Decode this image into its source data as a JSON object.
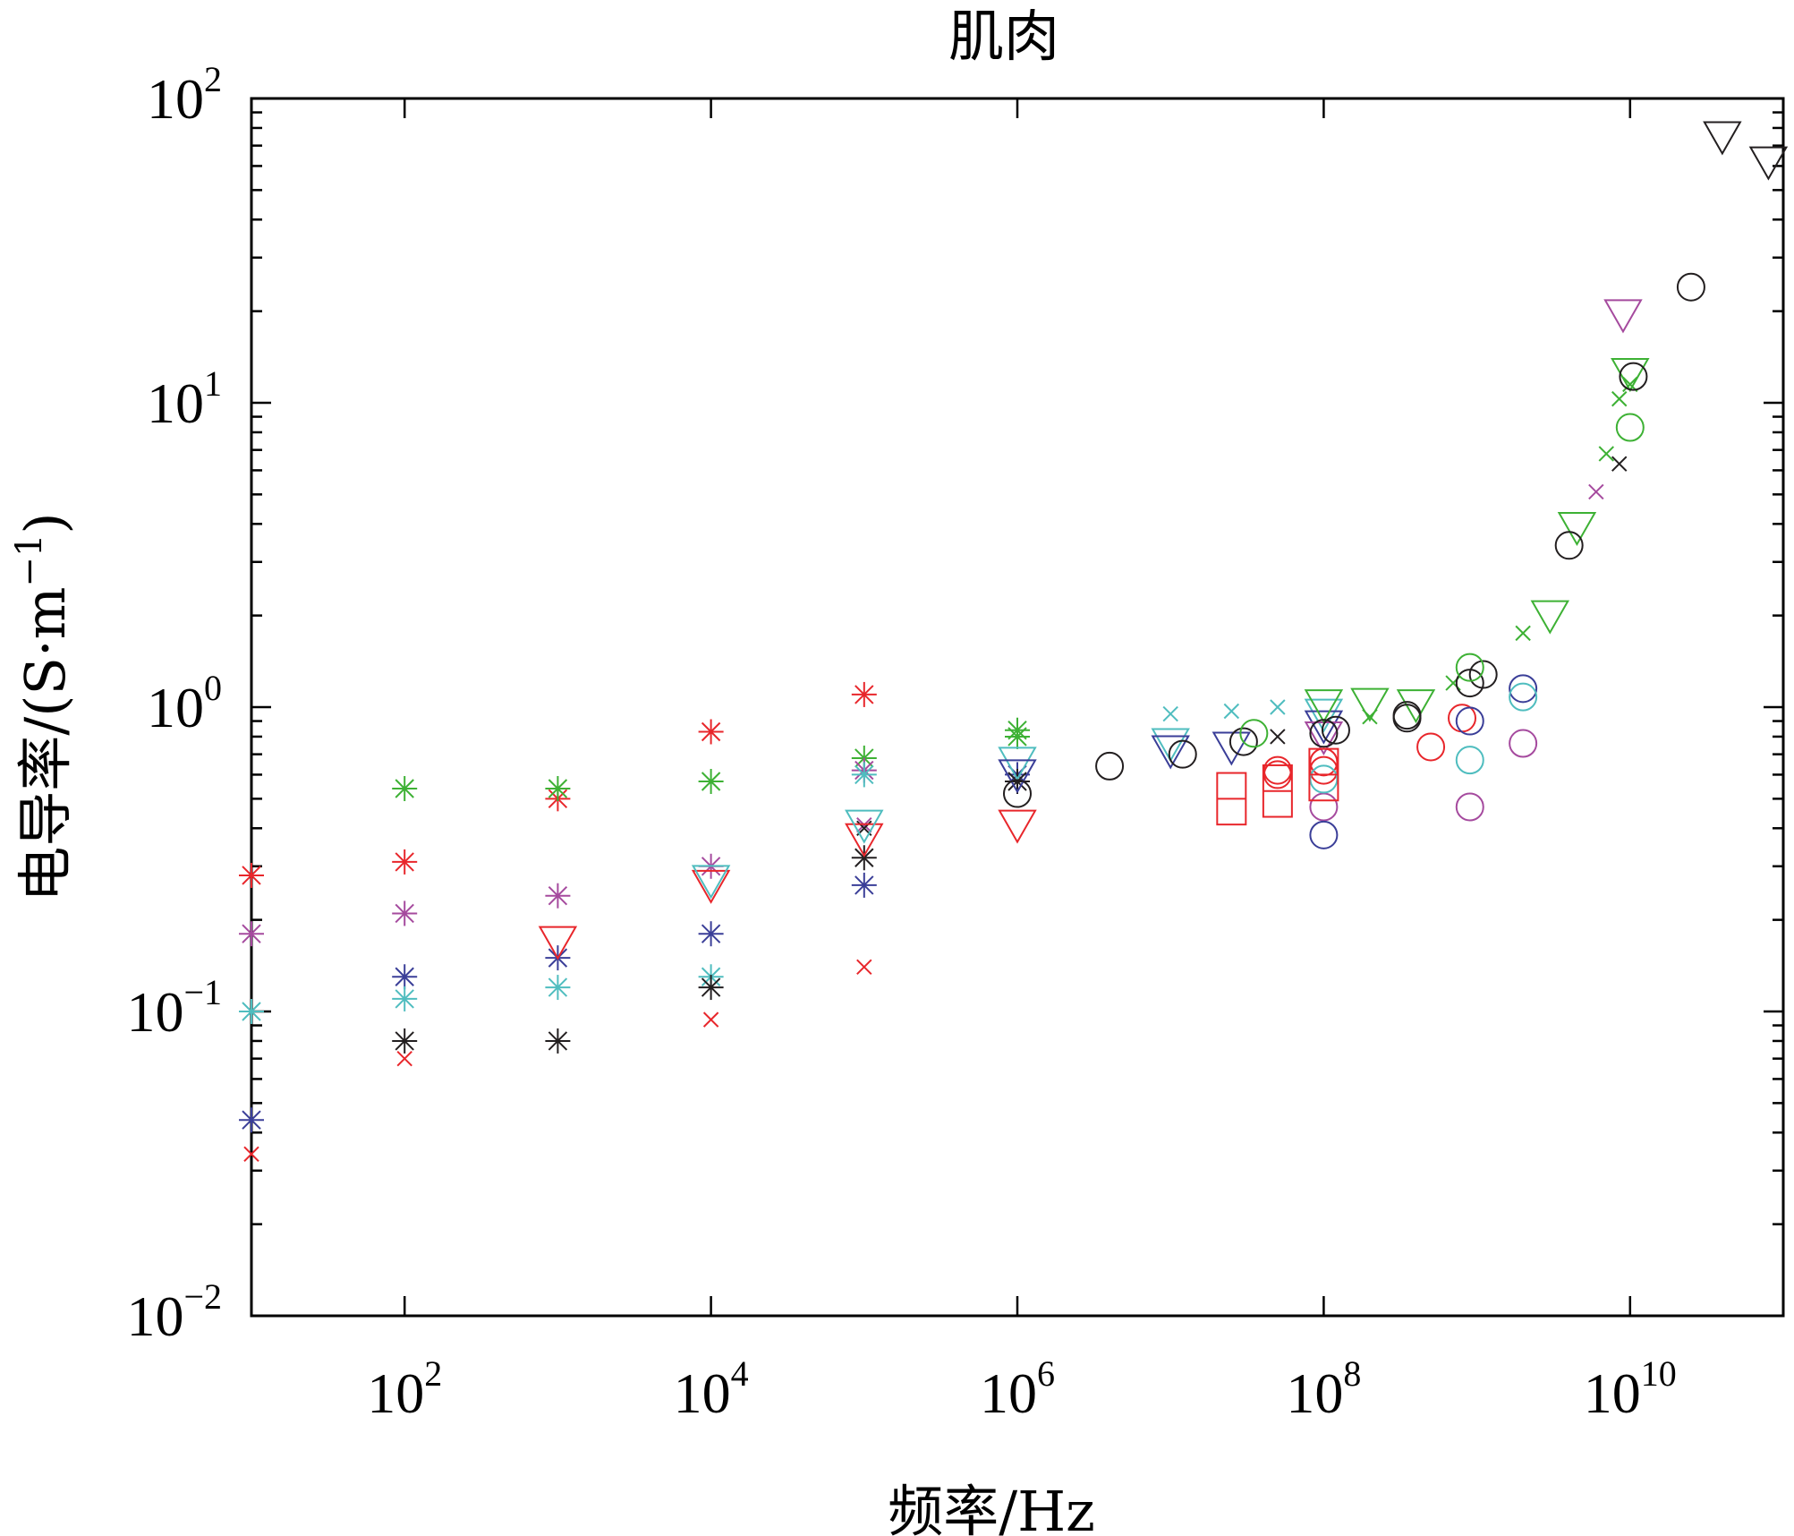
{
  "chart_data": {
    "type": "scatter",
    "title": "肌肉",
    "xlabel": "频率/Hz",
    "ylabel_prefix": "电导率/(S·m",
    "ylabel_sup": "−1",
    "ylabel_suffix": ")",
    "x_scale": "log",
    "y_scale": "log",
    "xlim": [
      10,
      100000000000
    ],
    "ylim": [
      0.01,
      100
    ],
    "grid": false,
    "legend": "none",
    "x_ticks": [
      {
        "value": 100,
        "base": "10",
        "exp": "2"
      },
      {
        "value": 10000,
        "base": "10",
        "exp": "4"
      },
      {
        "value": 1000000,
        "base": "10",
        "exp": "6"
      },
      {
        "value": 100000000,
        "base": "10",
        "exp": "8"
      },
      {
        "value": 10000000000,
        "base": "10",
        "exp": "10"
      }
    ],
    "y_ticks": [
      {
        "value": 0.01,
        "base": "10",
        "exp": "−2"
      },
      {
        "value": 0.1,
        "base": "10",
        "exp": "−1"
      },
      {
        "value": 1,
        "base": "10",
        "exp": "0"
      },
      {
        "value": 10,
        "base": "10",
        "exp": "1"
      },
      {
        "value": 100,
        "base": "10",
        "exp": "2"
      }
    ],
    "series": [
      {
        "marker": "asterisk",
        "color": "#e8262b",
        "points": [
          [
            10,
            0.28
          ],
          [
            100,
            0.31
          ],
          [
            1000,
            0.5
          ],
          [
            10000,
            0.83
          ],
          [
            100000,
            1.1
          ]
        ]
      },
      {
        "marker": "asterisk",
        "color": "#3db134",
        "points": [
          [
            100,
            0.54
          ],
          [
            1000,
            0.54
          ],
          [
            10000,
            0.57
          ],
          [
            100000,
            0.68
          ],
          [
            1000000,
            0.84
          ],
          [
            1000000,
            0.8
          ]
        ]
      },
      {
        "marker": "asterisk",
        "color": "#a54a9e",
        "points": [
          [
            10,
            0.18
          ],
          [
            100,
            0.21
          ],
          [
            1000,
            0.24
          ],
          [
            10000,
            0.3
          ],
          [
            100000,
            0.62
          ]
        ]
      },
      {
        "marker": "asterisk",
        "color": "#3a3e98",
        "points": [
          [
            10,
            0.044
          ],
          [
            100,
            0.13
          ],
          [
            1000,
            0.15
          ],
          [
            10000,
            0.18
          ],
          [
            100000,
            0.26
          ],
          [
            1000000,
            0.6
          ]
        ]
      },
      {
        "marker": "asterisk",
        "color": "#4fbdbf",
        "points": [
          [
            10,
            0.1
          ],
          [
            100,
            0.11
          ],
          [
            1000,
            0.12
          ],
          [
            10000,
            0.13
          ],
          [
            100000,
            0.6
          ]
        ]
      },
      {
        "marker": "asterisk",
        "color": "#231f20",
        "points": [
          [
            100,
            0.08
          ],
          [
            1000,
            0.08
          ],
          [
            10000,
            0.12
          ],
          [
            100000,
            0.32
          ],
          [
            1000000,
            0.57
          ]
        ]
      },
      {
        "marker": "cross",
        "color": "#e8262b",
        "points": [
          [
            10,
            0.034
          ],
          [
            100,
            0.07
          ],
          [
            10000,
            0.094
          ],
          [
            100000,
            0.14
          ]
        ]
      },
      {
        "marker": "cross",
        "color": "#4fbdbf",
        "points": [
          [
            10000000,
            0.95
          ],
          [
            25000000,
            0.97
          ],
          [
            50000000,
            1.0
          ]
        ]
      },
      {
        "marker": "cross",
        "color": "#a54a9e",
        "points": [
          [
            100000,
            0.41
          ],
          [
            6000000000,
            5.1
          ]
        ]
      },
      {
        "marker": "cross",
        "color": "#231f20",
        "points": [
          [
            100000,
            0.4
          ],
          [
            50000000,
            0.8
          ],
          [
            8500000000,
            6.3
          ]
        ]
      },
      {
        "marker": "cross",
        "color": "#3db134",
        "points": [
          [
            200000000,
            0.93
          ],
          [
            700000000,
            1.2
          ],
          [
            2000000000,
            1.75
          ],
          [
            7000000000,
            6.8
          ],
          [
            8500000000,
            10.3
          ],
          [
            10000000000,
            11.5
          ]
        ]
      },
      {
        "marker": "triangle",
        "color": "#e8262b",
        "points": [
          [
            1000,
            0.17
          ],
          [
            10000,
            0.26
          ],
          [
            100000,
            0.37
          ],
          [
            1000000,
            0.41
          ]
        ]
      },
      {
        "marker": "triangle",
        "color": "#4fbdbf",
        "points": [
          [
            10000,
            0.27
          ],
          [
            100000,
            0.41
          ],
          [
            1000000,
            0.66
          ],
          [
            10000000,
            0.76
          ],
          [
            100000000,
            0.95
          ]
        ]
      },
      {
        "marker": "triangle",
        "color": "#3a3e98",
        "points": [
          [
            1000000,
            0.6
          ],
          [
            10000000,
            0.72
          ],
          [
            25000000,
            0.74
          ],
          [
            100000000,
            0.87
          ]
        ]
      },
      {
        "marker": "triangle",
        "color": "#a54a9e",
        "points": [
          [
            100000000,
            0.8
          ],
          [
            9000000000,
            19.5
          ]
        ]
      },
      {
        "marker": "triangle",
        "color": "#3db134",
        "points": [
          [
            100000000,
            1.02
          ],
          [
            200000000,
            1.03
          ],
          [
            400000000,
            1.02
          ],
          [
            3000000000,
            2.0
          ],
          [
            4500000000,
            3.9
          ],
          [
            10000000000,
            12.5
          ]
        ]
      },
      {
        "marker": "triangle",
        "color": "#231f20",
        "points": [
          [
            40000000000,
            75
          ],
          [
            80000000000,
            62
          ]
        ]
      },
      {
        "marker": "circle",
        "color": "#231f20",
        "points": [
          [
            1000000,
            0.52
          ],
          [
            4000000,
            0.64
          ],
          [
            12000000,
            0.7
          ],
          [
            30000000,
            0.77
          ],
          [
            100000000,
            0.82
          ],
          [
            120000000,
            0.84
          ],
          [
            350000000,
            0.94
          ],
          [
            350000000,
            0.92
          ],
          [
            900000000,
            1.2
          ],
          [
            1100000000,
            1.28
          ],
          [
            4000000000,
            3.4
          ],
          [
            10500000000,
            12.2
          ],
          [
            25000000000,
            24
          ]
        ]
      },
      {
        "marker": "circle",
        "color": "#e8262b",
        "points": [
          [
            50000000,
            0.6
          ],
          [
            50000000,
            0.62
          ],
          [
            100000000,
            0.66
          ],
          [
            100000000,
            0.62
          ],
          [
            500000000,
            0.74
          ],
          [
            800000000,
            0.92
          ]
        ]
      },
      {
        "marker": "circle",
        "color": "#3db134",
        "points": [
          [
            35000000,
            0.82
          ],
          [
            900000000,
            1.35
          ],
          [
            10000000000,
            8.3
          ]
        ]
      },
      {
        "marker": "circle",
        "color": "#a54a9e",
        "points": [
          [
            100000000,
            0.47
          ],
          [
            900000000,
            0.47
          ],
          [
            2000000000,
            0.76
          ]
        ]
      },
      {
        "marker": "circle",
        "color": "#3a3e98",
        "points": [
          [
            100000000,
            0.38
          ],
          [
            900000000,
            0.9
          ],
          [
            2000000000,
            1.15
          ]
        ]
      },
      {
        "marker": "circle",
        "color": "#4fbdbf",
        "points": [
          [
            100000000,
            0.58
          ],
          [
            900000000,
            0.67
          ],
          [
            2000000000,
            1.08
          ]
        ]
      },
      {
        "marker": "square",
        "color": "#e8262b",
        "points": [
          [
            25000000,
            0.5
          ],
          [
            50000000,
            0.53
          ],
          [
            100000000,
            0.6
          ]
        ]
      }
    ]
  }
}
